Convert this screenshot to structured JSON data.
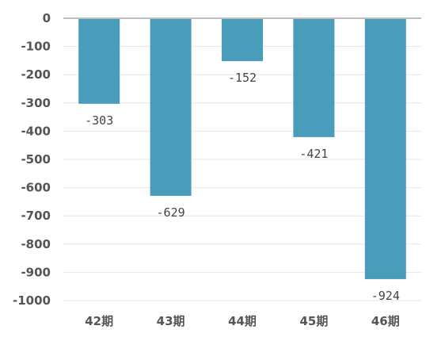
{
  "chart_data": {
    "type": "bar",
    "categories": [
      "42期",
      "43期",
      "44期",
      "45期",
      "46期"
    ],
    "values": [
      -303,
      -629,
      -152,
      -421,
      -924
    ],
    "data_labels": [
      "-303",
      "-629",
      "-152",
      "-421",
      "-924"
    ],
    "ylim": [
      -1000,
      0
    ],
    "yticks": [
      0,
      -100,
      -200,
      -300,
      -400,
      -500,
      -600,
      -700,
      -800,
      -900,
      -1000
    ],
    "ytick_labels": [
      "0",
      "-100",
      "-200",
      "-300",
      "-400",
      "-500",
      "-600",
      "-700",
      "-800",
      "-900",
      "-1000"
    ],
    "grid": true,
    "legend": "none",
    "bar_color": "#4a9dba"
  }
}
